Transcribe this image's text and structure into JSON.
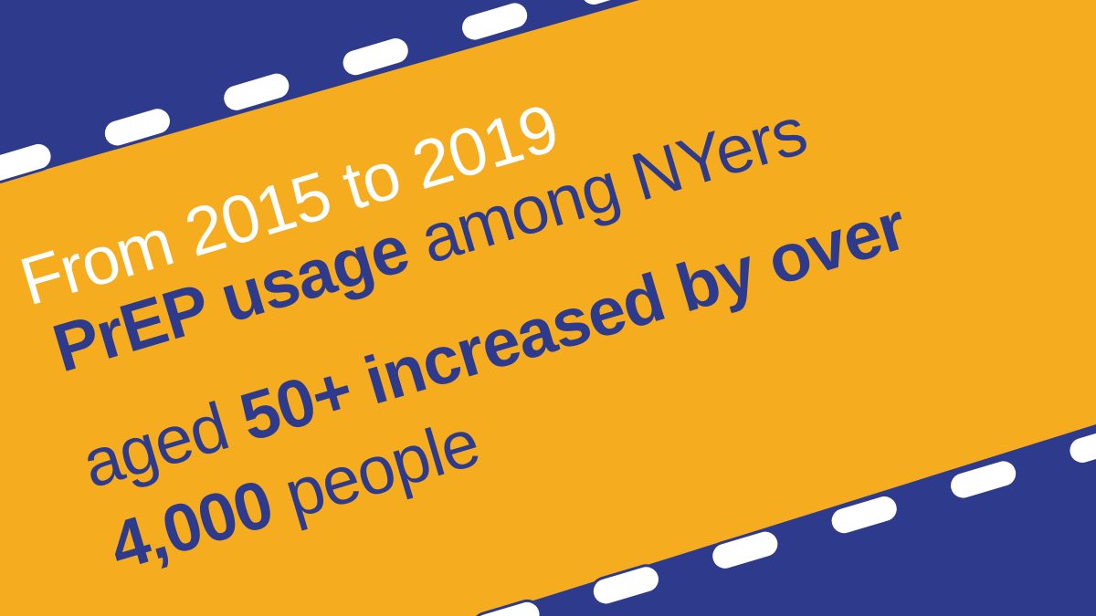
{
  "lines": [
    {
      "segments": [
        {
          "text": "From 2015 to 2019",
          "bold": false
        }
      ]
    },
    {
      "segments": [
        {
          "text": "PrEP usage",
          "bold": true
        },
        {
          "text": " among NYers",
          "bold": false
        }
      ]
    },
    {
      "segments": [
        {
          "text": "aged ",
          "bold": false
        },
        {
          "text": "50+ increased by over",
          "bold": true
        }
      ]
    },
    {
      "segments": [
        {
          "text": "4,000",
          "bold": true
        },
        {
          "text": " people",
          "bold": false
        }
      ]
    }
  ]
}
